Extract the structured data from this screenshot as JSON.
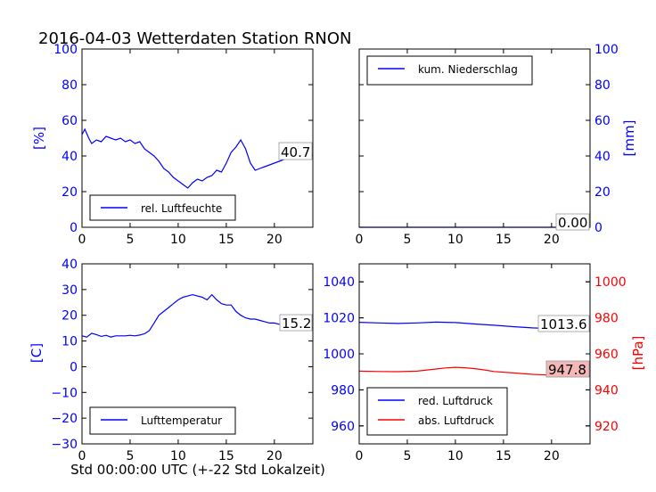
{
  "title": "2016-04-03 Wetterdaten Station RNON",
  "xlabel": "Std 00:00:00 UTC (+-22 Std Lokalzeit)",
  "colors": {
    "primary": "#0000ff",
    "secondary": "#ff0000",
    "last_value_box_red": "#f4b8b8"
  },
  "chart_data": [
    {
      "type": "line",
      "ylabel": "[%]",
      "xlim": [
        0,
        24
      ],
      "ylim": [
        0,
        100
      ],
      "xticks": [
        0,
        5,
        10,
        15,
        20
      ],
      "yticks": [
        0,
        20,
        40,
        60,
        80,
        100
      ],
      "legend": "rel. Luftfeuchte",
      "legend_position": "lower-left",
      "last_value_label": "40.7",
      "series": [
        {
          "name": "rel. Luftfeuchte",
          "color": "#0000ff",
          "x": [
            0,
            0.3,
            0.7,
            1,
            1.5,
            2,
            2.5,
            3,
            3.5,
            4,
            4.5,
            5,
            5.5,
            6,
            6.5,
            7,
            7.5,
            8,
            8.5,
            9,
            9.5,
            10,
            10.5,
            11,
            11.5,
            12,
            12.5,
            13,
            13.5,
            14,
            14.5,
            15,
            15.5,
            16,
            16.5,
            17,
            17.5,
            18,
            18.5,
            19,
            19.5,
            20,
            20.5,
            21,
            21.5,
            22,
            22.5,
            23,
            23.5,
            24
          ],
          "y": [
            52,
            55,
            50,
            47,
            49,
            48,
            51,
            50,
            49,
            50,
            48,
            49,
            47,
            48,
            44,
            42,
            40,
            37,
            33,
            31,
            28,
            26,
            24,
            22,
            25,
            27,
            26,
            28,
            29,
            32,
            31,
            36,
            42,
            45,
            49,
            44,
            36,
            32,
            33,
            34,
            35,
            36,
            37,
            38,
            40,
            41,
            41,
            40,
            40,
            40.7
          ]
        }
      ]
    },
    {
      "type": "line",
      "ylabel": "[mm]",
      "xlim": [
        0,
        24
      ],
      "ylim": [
        0,
        100
      ],
      "xticks": [
        0,
        5,
        10,
        15,
        20
      ],
      "yticks": [
        0,
        20,
        40,
        60,
        80,
        100
      ],
      "legend": "kum. Niederschlag",
      "legend_position": "upper-left",
      "last_value_label": "0.00",
      "series": [
        {
          "name": "kum. Niederschlag",
          "color": "#0000ff",
          "x": [
            0,
            24
          ],
          "y": [
            0,
            0
          ]
        }
      ]
    },
    {
      "type": "line",
      "ylabel": "[C]",
      "xlim": [
        0,
        24
      ],
      "ylim": [
        -30,
        40
      ],
      "xticks": [
        0,
        5,
        10,
        15,
        20
      ],
      "yticks": [
        -30,
        -20,
        -10,
        0,
        10,
        20,
        30,
        40
      ],
      "legend": "Lufttemperatur",
      "legend_position": "lower-left",
      "last_value_label": "15.2",
      "series": [
        {
          "name": "Lufttemperatur",
          "color": "#0000ff",
          "x": [
            0,
            0.5,
            1,
            1.5,
            2,
            2.5,
            3,
            3.5,
            4,
            4.5,
            5,
            5.5,
            6,
            6.5,
            7,
            7.5,
            8,
            8.5,
            9,
            9.5,
            10,
            10.5,
            11,
            11.5,
            12,
            12.5,
            13,
            13.5,
            14,
            14.5,
            15,
            15.5,
            16,
            16.5,
            17,
            17.5,
            18,
            18.5,
            19,
            19.5,
            20,
            20.5,
            21,
            21.5,
            22,
            22.5,
            23,
            23.5,
            24
          ],
          "y": [
            12,
            11.5,
            13,
            12.5,
            11.8,
            12.2,
            11.5,
            12,
            12,
            12,
            12.2,
            12,
            12.3,
            12.8,
            14,
            17,
            20,
            21.5,
            23,
            24.5,
            26,
            27,
            27.5,
            28,
            27.5,
            27,
            26,
            28,
            26,
            24.5,
            24,
            24,
            21.5,
            20,
            19,
            18.5,
            18.5,
            18,
            17.5,
            17,
            17,
            16.5,
            16.5,
            16,
            16,
            15.5,
            15.5,
            15.3,
            15.2
          ]
        }
      ]
    },
    {
      "type": "line",
      "ylabel": "[hPa]",
      "xlim": [
        0,
        24
      ],
      "ylim_left": [
        950,
        1050
      ],
      "ylim_right": [
        910,
        1010
      ],
      "xticks": [
        0,
        5,
        10,
        15,
        20
      ],
      "yticks_left": [
        960,
        980,
        1000,
        1020,
        1040
      ],
      "yticks_right": [
        920,
        940,
        960,
        980,
        1000
      ],
      "legend_position": "lower-left",
      "last_value_labels": [
        "1013.6",
        "947.8"
      ],
      "series": [
        {
          "name": "red. Luftdruck",
          "color": "#0000ff",
          "axis": "left",
          "x": [
            0,
            2,
            4,
            6,
            8,
            10,
            12,
            14,
            16,
            18,
            20,
            22,
            24
          ],
          "y": [
            1017.5,
            1017.2,
            1016.9,
            1017.2,
            1017.6,
            1017.4,
            1016.6,
            1015.9,
            1015.1,
            1014.4,
            1014.0,
            1013.8,
            1013.6
          ]
        },
        {
          "name": "abs. Luftdruck",
          "color": "#ff0000",
          "axis": "right",
          "x": [
            0,
            2,
            4,
            6,
            8,
            9,
            10,
            11,
            12,
            13,
            14,
            16,
            18,
            20,
            22,
            24
          ],
          "y": [
            950.4,
            950.2,
            950.1,
            950.4,
            951.6,
            952.2,
            952.5,
            952.3,
            951.8,
            951.1,
            950.2,
            949.4,
            948.6,
            948.2,
            947.9,
            947.8
          ]
        }
      ]
    }
  ]
}
